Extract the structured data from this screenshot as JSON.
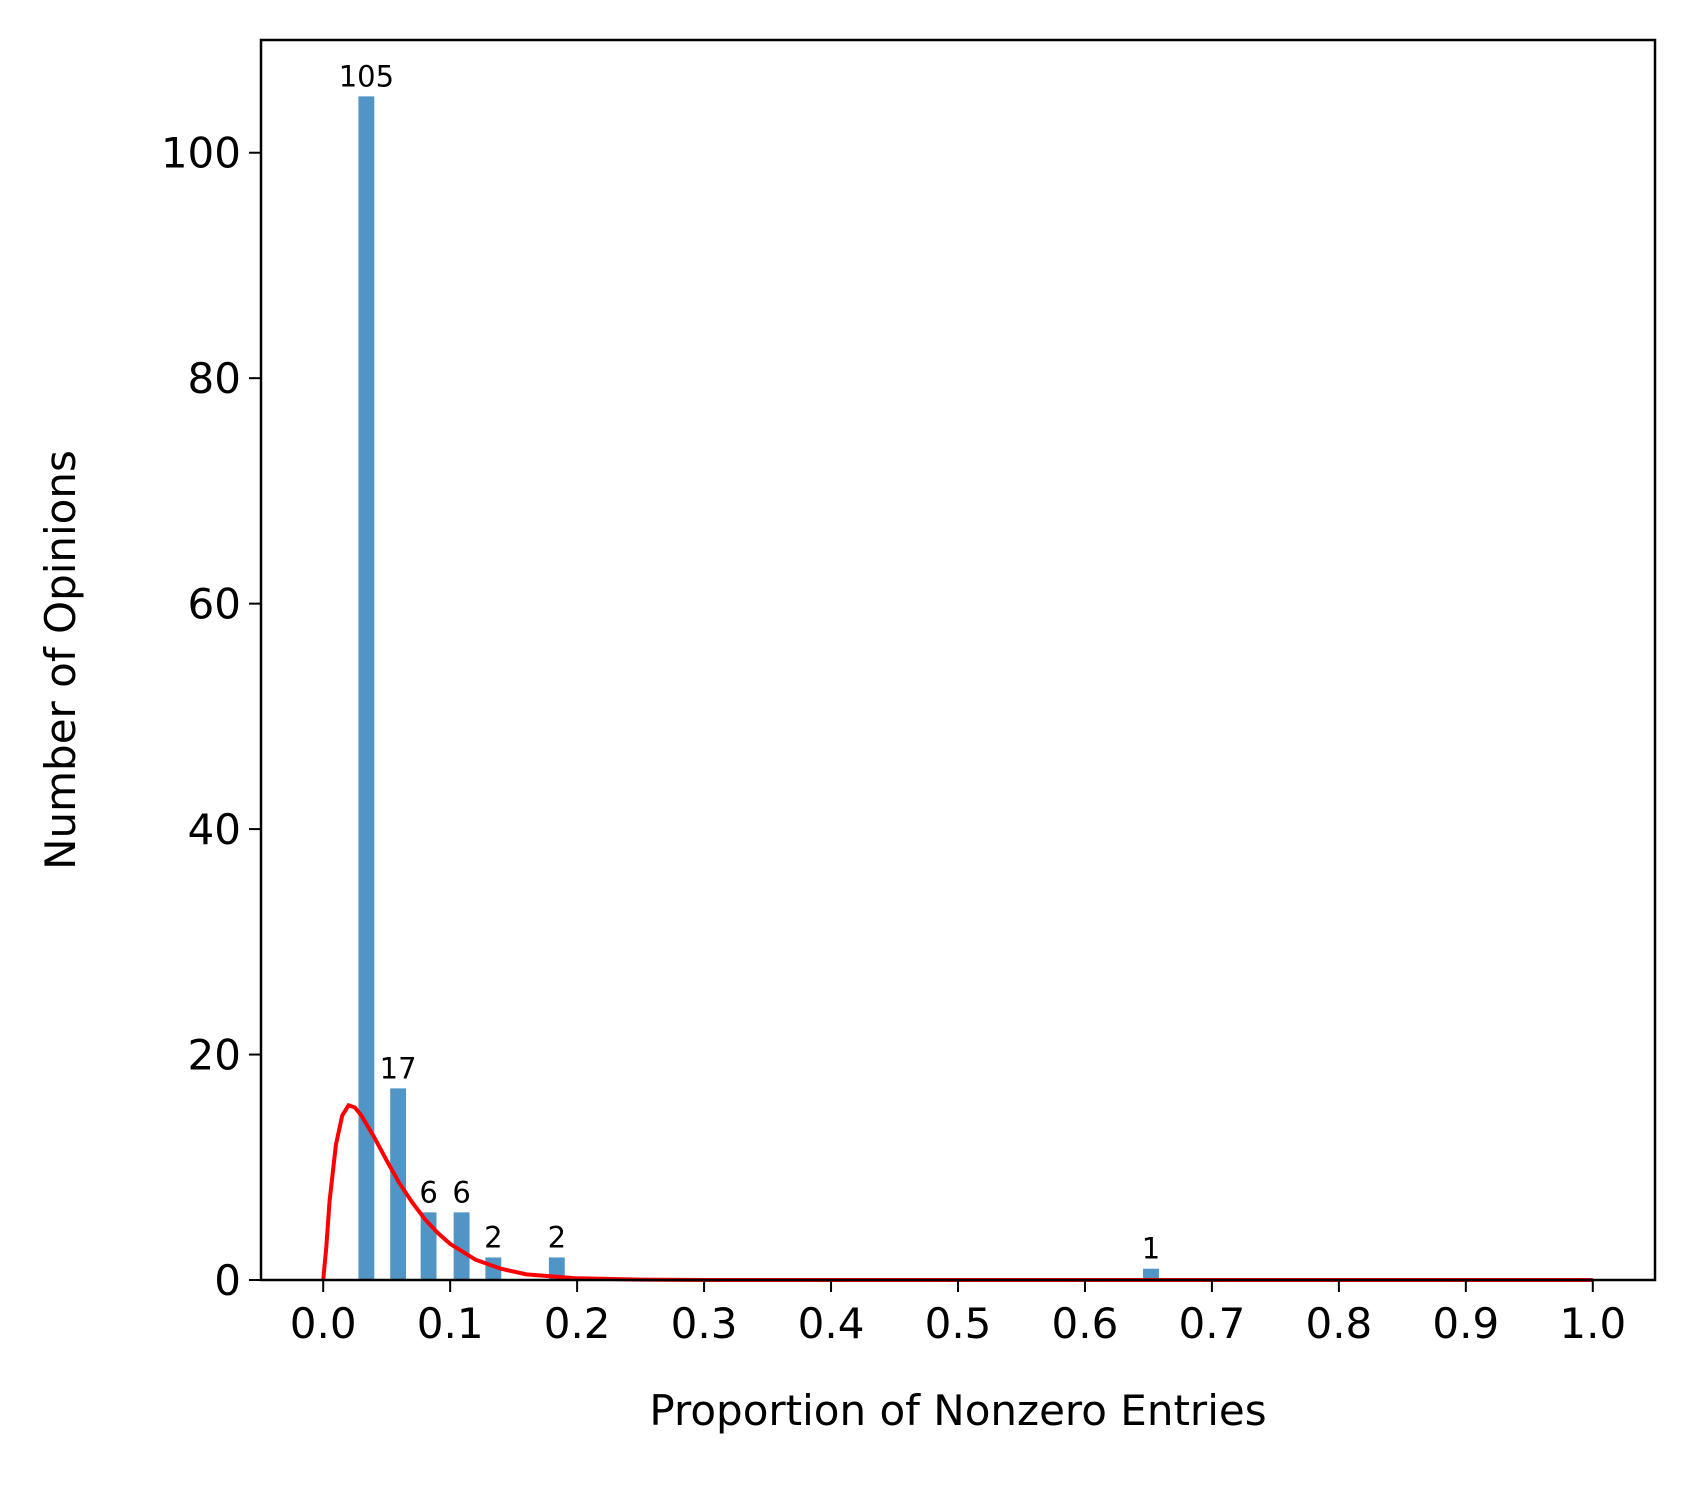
{
  "chart_data": {
    "type": "bar",
    "x_label": "Proportion of Nonzero Entries",
    "y_label": "Number of Opinions",
    "xlim": [
      -0.049,
      1.049
    ],
    "ylim": [
      0,
      110
    ],
    "xticks": [
      {
        "value": 0,
        "label": "0.0"
      },
      0.1,
      0.2,
      0.3,
      0.4,
      0.5,
      0.6,
      0.7,
      0.8,
      0.9,
      {
        "value": 1,
        "label": "1.0"
      }
    ],
    "yticks": [
      0,
      20,
      40,
      60,
      80,
      100
    ],
    "grid": false,
    "series": [
      {
        "type": "bar",
        "color": "#5195c6",
        "x": [
          0.034,
          0.059,
          0.083,
          0.109,
          0.134,
          0.184,
          0.652
        ],
        "values": [
          105,
          17,
          6,
          6,
          2,
          2,
          1
        ]
      },
      {
        "type": "line",
        "color": "#ff0000",
        "x": [
          0,
          0.0025,
          0.005,
          0.01,
          0.015,
          0.02,
          0.025,
          0.03,
          0.04,
          0.05,
          0.06,
          0.07,
          0.08,
          0.09,
          0.1,
          0.12,
          0.14,
          0.16,
          0.2,
          0.25,
          0.3,
          0.5,
          1.0
        ],
        "values": [
          0,
          3,
          7,
          12,
          14.6,
          15.5,
          15.3,
          14.6,
          12.7,
          10.6,
          8.6,
          6.9,
          5.4,
          4.2,
          3.2,
          1.8,
          1.0,
          0.5,
          0.15,
          0.03,
          0,
          0,
          0
        ]
      }
    ]
  }
}
